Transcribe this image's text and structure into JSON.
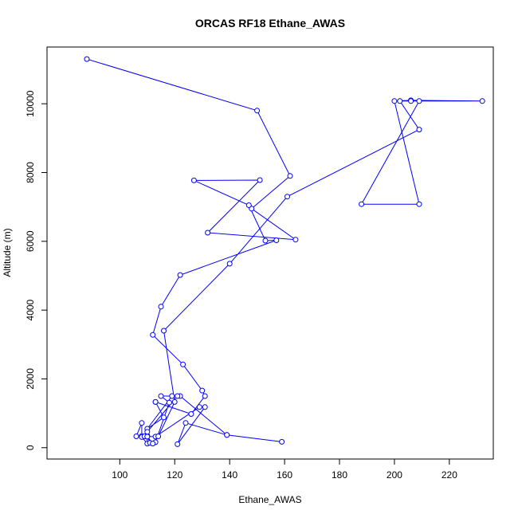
{
  "chart_data": {
    "type": "line",
    "title": "ORCAS RF18 Ethane_AWAS",
    "xlabel": "Ethane_AWAS",
    "ylabel": "Altitude (m)",
    "xlim": [
      73.5,
      236
    ],
    "ylim": [
      -330,
      11650
    ],
    "xticks": [
      100,
      120,
      140,
      160,
      180,
      200,
      220
    ],
    "yticks": [
      0,
      2000,
      4000,
      6000,
      8000,
      10000
    ],
    "grid": false,
    "legend": "none",
    "markers": "open circle",
    "series_color": "#0000ff",
    "series": [
      {
        "x": [
          88,
          150,
          162,
          148,
          164,
          132,
          151,
          127,
          147,
          153,
          157,
          122,
          115,
          112,
          123,
          130,
          131,
          126,
          113,
          113,
          116,
          110,
          119,
          122,
          139,
          159,
          139,
          124,
          121,
          131,
          129,
          113,
          106,
          108,
          108,
          108,
          110,
          110,
          111,
          113,
          118,
          115,
          121,
          110,
          109,
          110,
          110,
          112,
          114,
          120,
          116,
          140,
          161,
          209,
          202,
          209,
          188,
          209,
          200,
          206,
          232,
          206
        ],
        "y": [
          11300,
          9800,
          7900,
          6950,
          6050,
          6250,
          7780,
          7770,
          7050,
          6020,
          6030,
          5020,
          4100,
          3280,
          2420,
          1660,
          1500,
          980,
          1330,
          1330,
          880,
          550,
          1500,
          1500,
          370,
          170,
          370,
          720,
          100,
          1180,
          1180,
          320,
          330,
          720,
          340,
          310,
          120,
          350,
          140,
          160,
          1310,
          1500,
          1500,
          460,
          330,
          320,
          320,
          120,
          330,
          1330,
          3400,
          5350,
          7300,
          9250,
          10080,
          10080,
          7080,
          7080,
          10080,
          10100,
          10080,
          10080
        ]
      }
    ]
  }
}
